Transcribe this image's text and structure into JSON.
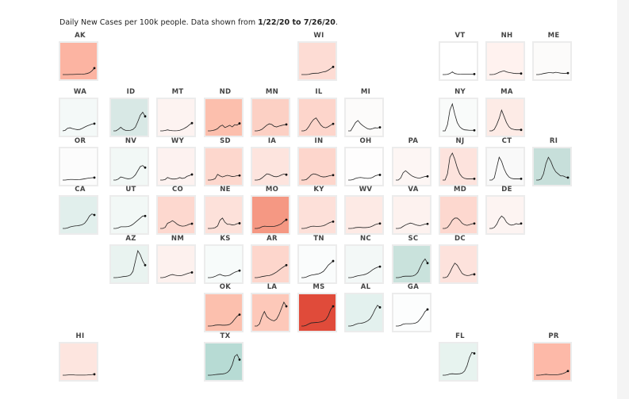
{
  "chart_data": {
    "type": "line",
    "title_prefix": "Daily New Cases per 100k people. Data shown from ",
    "title_date_range": "1/22/20 to 7/26/20",
    "title_suffix": ".",
    "xlim": [
      "1/22/20",
      "7/26/20"
    ],
    "tiles": [
      {
        "state": "AK",
        "col": 0,
        "row": 0,
        "color": "#fcb4a2",
        "series": [
          0,
          0,
          0,
          0.1,
          0.1,
          0.2,
          0.3,
          0.3,
          0.4,
          0.6,
          1,
          1.8,
          3.6,
          6.2
        ]
      },
      {
        "state": "WI",
        "col": 5,
        "row": 0,
        "color": "#fddcd4",
        "series": [
          0,
          0,
          0,
          0.2,
          0.8,
          1.2,
          1.3,
          1.4,
          2,
          2.6,
          3,
          4.2,
          5.8,
          7.4
        ]
      },
      {
        "state": "VT",
        "col": 8,
        "row": 0,
        "color": "#ffffff",
        "series": [
          0,
          0,
          0.2,
          1,
          2.6,
          1,
          0.6,
          0.4,
          0.3,
          0.4,
          0.4,
          0.3,
          0.4,
          0.5
        ]
      },
      {
        "state": "NH",
        "col": 9,
        "row": 0,
        "color": "#fff2ef",
        "series": [
          0,
          0,
          0.2,
          1,
          2.2,
          3,
          3.6,
          2.6,
          2,
          1.6,
          1.2,
          1,
          1,
          1
        ]
      },
      {
        "state": "ME",
        "col": 10,
        "row": 0,
        "color": "#fcfbfa",
        "series": [
          0,
          0,
          0.4,
          1,
          1.4,
          1.8,
          1.8,
          1.6,
          2.2,
          1.8,
          1.4,
          1.2,
          1.2,
          1.4
        ]
      },
      {
        "state": "WA",
        "col": 0,
        "row": 1,
        "color": "#f4f9f8",
        "series": [
          0,
          0.5,
          2.5,
          3,
          2.2,
          1.6,
          1.2,
          1.4,
          2.4,
          3.6,
          4.8,
          5.6,
          6.6,
          7
        ]
      },
      {
        "state": "ID",
        "col": 1,
        "row": 1,
        "color": "#d8e8e5",
        "series": [
          0,
          0,
          1.5,
          3.5,
          1.5,
          0.5,
          0.5,
          0.6,
          1.4,
          3.6,
          9,
          15,
          18,
          14
        ]
      },
      {
        "state": "MT",
        "col": 2,
        "row": 1,
        "color": "#fdf3f1",
        "series": [
          0,
          0,
          0.4,
          1,
          0.4,
          0.2,
          0.1,
          0.2,
          0.6,
          1.4,
          2.6,
          4,
          6,
          7.5
        ]
      },
      {
        "state": "ND",
        "col": 3,
        "row": 1,
        "color": "#fcbfad",
        "series": [
          0,
          0,
          0.4,
          1,
          2.2,
          4.4,
          5.6,
          3.2,
          4.2,
          5.4,
          3.8,
          6,
          5.6,
          7.2
        ]
      },
      {
        "state": "MN",
        "col": 4,
        "row": 1,
        "color": "#fcd0c4",
        "series": [
          0,
          0,
          0.5,
          1.5,
          3.5,
          5.5,
          6.8,
          6.2,
          4.4,
          3.8,
          4.6,
          5.2,
          5.8,
          6.2
        ]
      },
      {
        "state": "IL",
        "col": 5,
        "row": 1,
        "color": "#fdd5cb",
        "series": [
          0,
          0,
          1,
          4,
          8,
          11,
          12.5,
          9,
          5.5,
          3.5,
          3,
          4,
          5.5,
          6.8
        ]
      },
      {
        "state": "MI",
        "col": 6,
        "row": 1,
        "color": "#fcfbfa",
        "series": [
          0,
          0,
          4,
          8,
          10,
          7,
          5,
          3.4,
          2,
          1.6,
          2.2,
          3,
          2.8,
          3.4
        ]
      },
      {
        "state": "NY",
        "col": 8,
        "row": 1,
        "color": "#f9fbfa",
        "series": [
          0,
          0,
          6,
          20,
          26,
          16,
          8,
          4,
          2,
          1,
          0.8,
          0.6,
          0.6,
          0.6
        ]
      },
      {
        "state": "MA",
        "col": 9,
        "row": 1,
        "color": "#fdebe6",
        "series": [
          0,
          0,
          1.5,
          6,
          12,
          20,
          14,
          8,
          4,
          2,
          1.4,
          1,
          1,
          1
        ]
      },
      {
        "state": "OR",
        "col": 0,
        "row": 2,
        "color": "#fcfcfc",
        "series": [
          0,
          0,
          0.3,
          0.6,
          0.6,
          0.5,
          0.4,
          0.5,
          0.8,
          1.2,
          1.6,
          2,
          2.2,
          2.4
        ]
      },
      {
        "state": "NV",
        "col": 1,
        "row": 2,
        "color": "#f2f8f6",
        "series": [
          0,
          0,
          1,
          3,
          2.4,
          1.6,
          1.2,
          1.4,
          2.6,
          5,
          9,
          13,
          14,
          12
        ]
      },
      {
        "state": "WY",
        "col": 2,
        "row": 2,
        "color": "#fdf2f0",
        "series": [
          0,
          0,
          0.5,
          2.5,
          1.5,
          1,
          1,
          1.4,
          2.4,
          1.6,
          2,
          3.6,
          4.4,
          5.4
        ]
      },
      {
        "state": "SD",
        "col": 3,
        "row": 2,
        "color": "#fdd7cd",
        "series": [
          0,
          0,
          0.4,
          1.4,
          5.5,
          4,
          3,
          3.8,
          4.6,
          4,
          3.4,
          3.6,
          4.2,
          4.4
        ]
      },
      {
        "state": "IA",
        "col": 4,
        "row": 2,
        "color": "#fde4de",
        "series": [
          0,
          0,
          0.5,
          2,
          4,
          6,
          5.5,
          4.4,
          3.4,
          3.2,
          3.8,
          5,
          5.8,
          5.2
        ]
      },
      {
        "state": "IN",
        "col": 5,
        "row": 2,
        "color": "#fdd6cc",
        "series": [
          0,
          0,
          0.5,
          2.5,
          5,
          6,
          5.5,
          4.6,
          3.4,
          3,
          3.2,
          3.8,
          4.4,
          4.8
        ]
      },
      {
        "state": "OH",
        "col": 6,
        "row": 2,
        "color": "#fefdfd",
        "series": [
          0,
          0,
          0.5,
          1.6,
          2.2,
          2.5,
          2.2,
          1.8,
          1.6,
          1.8,
          2.6,
          4,
          4.8,
          5
        ]
      },
      {
        "state": "PA",
        "col": 7,
        "row": 2,
        "color": "#fdf6f4",
        "series": [
          0,
          0,
          2,
          7,
          9,
          7,
          5,
          3.5,
          2.6,
          2,
          2,
          2.8,
          3.4,
          3.6
        ]
      },
      {
        "state": "NJ",
        "col": 8,
        "row": 2,
        "color": "#fde3dd",
        "series": [
          0,
          0,
          6,
          22,
          26,
          20,
          12,
          6,
          3,
          1.6,
          1.2,
          1.2,
          1.2,
          1.2
        ]
      },
      {
        "state": "CT",
        "col": 9,
        "row": 2,
        "color": "#f9f9f9",
        "series": [
          0,
          0,
          2,
          12,
          22,
          18,
          11,
          6,
          3,
          1.6,
          1.2,
          1.2,
          1.2,
          1.2
        ]
      },
      {
        "state": "RI",
        "col": 10,
        "row": 2,
        "color": "#c7dfda",
        "series": [
          0,
          0,
          1,
          6,
          16,
          22,
          18,
          12,
          8,
          6,
          4,
          4,
          3,
          2.4
        ]
      },
      {
        "state": "CA",
        "col": 0,
        "row": 3,
        "color": "#e1efec",
        "series": [
          0,
          0,
          0.5,
          1.4,
          2,
          2.4,
          2.6,
          3,
          3.6,
          5,
          8,
          12,
          14,
          13
        ]
      },
      {
        "state": "UT",
        "col": 1,
        "row": 3,
        "color": "#f2f8f6",
        "series": [
          0,
          0,
          0.6,
          1.6,
          1.6,
          1.6,
          1.8,
          2.6,
          4,
          6,
          8,
          10,
          12,
          12
        ]
      },
      {
        "state": "CO",
        "col": 2,
        "row": 3,
        "color": "#fdd8cf",
        "series": [
          0,
          0,
          1,
          5,
          6,
          7.5,
          6,
          4,
          2.8,
          2.2,
          2.4,
          3.2,
          4.2,
          4.6
        ]
      },
      {
        "state": "NE",
        "col": 3,
        "row": 3,
        "color": "#fde1da",
        "series": [
          0,
          0,
          0.2,
          0.8,
          2.4,
          8,
          10,
          6,
          4,
          4,
          3.4,
          3.6,
          4.6,
          5
        ]
      },
      {
        "state": "MO",
        "col": 4,
        "row": 3,
        "color": "#f59883",
        "series": [
          0,
          0,
          0.5,
          1.6,
          2.2,
          2,
          1.8,
          1.8,
          2,
          2.6,
          3.4,
          4.6,
          6.8,
          8.4
        ]
      },
      {
        "state": "KY",
        "col": 5,
        "row": 3,
        "color": "#fde0d9",
        "series": [
          0,
          0,
          0.4,
          1.2,
          2,
          2.2,
          2,
          2,
          2.2,
          2.6,
          3.6,
          5,
          6,
          6.6
        ]
      },
      {
        "state": "WV",
        "col": 6,
        "row": 3,
        "color": "#fdeae5",
        "series": [
          0,
          0,
          0.2,
          0.8,
          1,
          1,
          0.8,
          0.8,
          1,
          1.4,
          2.4,
          3.6,
          4.4,
          4.8
        ]
      },
      {
        "state": "VA",
        "col": 7,
        "row": 3,
        "color": "#fdf2ef",
        "series": [
          0,
          0,
          0.5,
          2,
          3.4,
          4.4,
          5.2,
          4.6,
          3.6,
          3,
          2.8,
          3.4,
          4.2,
          4.4
        ]
      },
      {
        "state": "MD",
        "col": 8,
        "row": 3,
        "color": "#fdd8cf",
        "series": [
          0,
          0,
          1,
          4,
          8,
          10,
          10,
          8,
          5,
          3.6,
          3,
          3.6,
          4.4,
          4.8
        ]
      },
      {
        "state": "DE",
        "col": 9,
        "row": 3,
        "color": "#fdf4f2",
        "series": [
          0,
          0,
          1,
          4,
          9,
          12,
          10,
          6,
          4,
          3.2,
          3.6,
          4.6,
          4,
          4.8
        ]
      },
      {
        "state": "AZ",
        "col": 1,
        "row": 4,
        "color": "#e9f3f0",
        "series": [
          0,
          0,
          0.2,
          0.6,
          1,
          1.2,
          1.6,
          2.6,
          6,
          16,
          26,
          22,
          16,
          12
        ]
      },
      {
        "state": "NM",
        "col": 2,
        "row": 4,
        "color": "#fdf1ee",
        "series": [
          0,
          0,
          0.5,
          1.4,
          2.4,
          3,
          2.4,
          2,
          1.8,
          2.2,
          3,
          3.8,
          4.6,
          5
        ]
      },
      {
        "state": "KS",
        "col": 3,
        "row": 4,
        "color": "#f7fbfa",
        "series": [
          0,
          0,
          0.4,
          1.2,
          2.4,
          3.2,
          2.2,
          1.6,
          1.8,
          2.4,
          3.8,
          5.2,
          6,
          6.8
        ]
      },
      {
        "state": "AR",
        "col": 4,
        "row": 4,
        "color": "#fdd6cc",
        "series": [
          0,
          0,
          0.4,
          1,
          1.4,
          1.8,
          2,
          2.8,
          4,
          5.4,
          7.2,
          9,
          10.6,
          12
        ]
      },
      {
        "state": "TN",
        "col": 5,
        "row": 4,
        "color": "#fafcfc",
        "series": [
          0,
          0,
          0.6,
          1.6,
          2.4,
          2.8,
          3.2,
          3.6,
          4.6,
          6,
          8.8,
          12,
          14,
          16
        ]
      },
      {
        "state": "NC",
        "col": 6,
        "row": 4,
        "color": "#f3f8f7",
        "series": [
          0,
          0,
          0.4,
          1.2,
          1.8,
          2.2,
          2.6,
          3.2,
          4.2,
          5.8,
          7.6,
          9,
          10,
          10.6
        ]
      },
      {
        "state": "SC",
        "col": 7,
        "row": 4,
        "color": "#c9e2dc",
        "series": [
          0,
          0,
          0.4,
          1.2,
          1.4,
          1.4,
          1.4,
          1.6,
          2.6,
          5,
          10,
          15,
          18,
          14
        ]
      },
      {
        "state": "DC",
        "col": 8,
        "row": 4,
        "color": "#fde2dc",
        "series": [
          0,
          0,
          1,
          5,
          10,
          14,
          12,
          8,
          4,
          2.6,
          2,
          2.2,
          3,
          3.2
        ]
      },
      {
        "state": "OK",
        "col": 3,
        "row": 5,
        "color": "#fcc0ae",
        "series": [
          0,
          0,
          0.2,
          0.8,
          1,
          1,
          0.8,
          0.8,
          1,
          1.6,
          3.6,
          6.6,
          9.4,
          11
        ]
      },
      {
        "state": "LA",
        "col": 4,
        "row": 5,
        "color": "#fdc8b9",
        "series": [
          0,
          0,
          2,
          9,
          14,
          9,
          7,
          5.6,
          5,
          6.6,
          11,
          17,
          23,
          19
        ]
      },
      {
        "state": "MS",
        "col": 5,
        "row": 5,
        "color": "#e04b3a",
        "series": [
          0,
          0,
          0.8,
          2,
          3,
          3.2,
          3.4,
          3.6,
          4,
          4.8,
          6.2,
          10,
          16,
          19
        ]
      },
      {
        "state": "AL",
        "col": 6,
        "row": 5,
        "color": "#e3f1ee",
        "series": [
          0,
          0,
          0.6,
          1.6,
          2.4,
          2.6,
          3,
          3.8,
          5,
          7,
          11,
          16,
          20,
          18
        ]
      },
      {
        "state": "GA",
        "col": 7,
        "row": 5,
        "color": "#fcfdfd",
        "series": [
          0,
          0,
          0.6,
          1.8,
          2.2,
          2.2,
          2.2,
          2.4,
          2.8,
          4,
          6.6,
          10,
          14,
          16
        ]
      },
      {
        "state": "HI",
        "col": 0,
        "row": 6,
        "color": "#fde5df",
        "series": [
          0,
          0,
          0.2,
          0.4,
          0.4,
          0.2,
          0.1,
          0.1,
          0.1,
          0.1,
          0.2,
          0.4,
          0.6,
          0.9
        ]
      },
      {
        "state": "TX",
        "col": 3,
        "row": 6,
        "color": "#b7dbd4",
        "series": [
          0,
          0,
          0.2,
          0.6,
          0.8,
          1,
          1.2,
          1.6,
          2.6,
          5,
          10,
          18,
          20,
          15
        ]
      },
      {
        "state": "FL",
        "col": 8,
        "row": 6,
        "color": "#e7f3ef",
        "series": [
          0,
          0,
          0.4,
          1.2,
          1.4,
          1.2,
          1.2,
          1.4,
          2,
          4,
          9,
          17,
          22,
          21
        ]
      },
      {
        "state": "PR",
        "col": 10,
        "row": 6,
        "color": "#fdb9a8",
        "series": [
          0,
          0,
          0.2,
          0.6,
          0.8,
          0.6,
          0.4,
          0.4,
          0.4,
          0.6,
          1,
          1.6,
          2.6,
          4
        ]
      }
    ]
  }
}
